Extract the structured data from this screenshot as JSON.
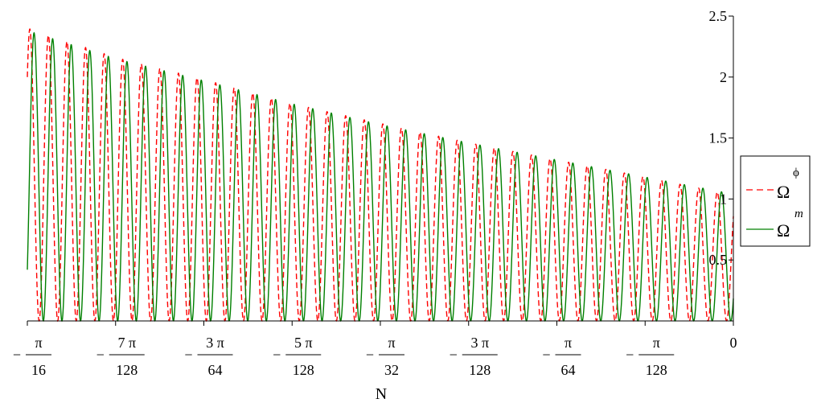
{
  "chart_data": {
    "type": "line",
    "xlabel": "N",
    "ylabel": "",
    "xlim": [
      -0.19635,
      0
    ],
    "ylim": [
      0,
      2.5
    ],
    "y_ticks": [
      {
        "value": 0.5,
        "label": "0.5"
      },
      {
        "value": 1,
        "label": "1"
      },
      {
        "value": 1.5,
        "label": "1.5"
      },
      {
        "value": 2,
        "label": "2"
      },
      {
        "value": 2.5,
        "label": "2.5"
      }
    ],
    "x_ticks": [
      {
        "value": -0.19635,
        "sign": "−",
        "num": "π",
        "den": "16"
      },
      {
        "value": -0.171806,
        "sign": "−",
        "num": "7 π",
        "den": "128"
      },
      {
        "value": -0.147262,
        "sign": "−",
        "num": "3 π",
        "den": "64"
      },
      {
        "value": -0.122718,
        "sign": "−",
        "num": "5 π",
        "den": "128"
      },
      {
        "value": -0.098175,
        "sign": "−",
        "num": "π",
        "den": "32"
      },
      {
        "value": -0.073631,
        "sign": "−",
        "num": "3 π",
        "den": "128"
      },
      {
        "value": -0.049087,
        "sign": "−",
        "num": "π",
        "den": "64"
      },
      {
        "value": -0.024544,
        "sign": "−",
        "num": "π",
        "den": "128"
      },
      {
        "value": 0,
        "sign": "",
        "num": "0",
        "den": ""
      }
    ],
    "legend_position": "right",
    "grid": false,
    "series": [
      {
        "name": "Ω",
        "name_superscript": "ϕ",
        "color": "#ff0000",
        "dash": "dashed",
        "oscillation_cycles": 38,
        "envelope": {
          "x": [
            -0.19635,
            -0.171806,
            -0.147262,
            -0.122718,
            -0.098175,
            -0.073631,
            -0.049087,
            -0.024544,
            0
          ],
          "peak": [
            2.4,
            2.16,
            1.98,
            1.78,
            1.62,
            1.46,
            1.32,
            1.18,
            1.03
          ]
        },
        "start_value": 2.0
      },
      {
        "name": "Ω",
        "name_superscript": "m",
        "color": "#008000",
        "dash": "solid",
        "oscillation_cycles": 38,
        "envelope": {
          "x": [
            -0.19635,
            -0.171806,
            -0.147262,
            -0.122718,
            -0.098175,
            -0.073631,
            -0.049087,
            -0.024544,
            0
          ],
          "peak": [
            2.38,
            2.15,
            1.97,
            1.78,
            1.61,
            1.46,
            1.32,
            1.18,
            1.04
          ]
        },
        "start_value": 0.42
      }
    ]
  }
}
